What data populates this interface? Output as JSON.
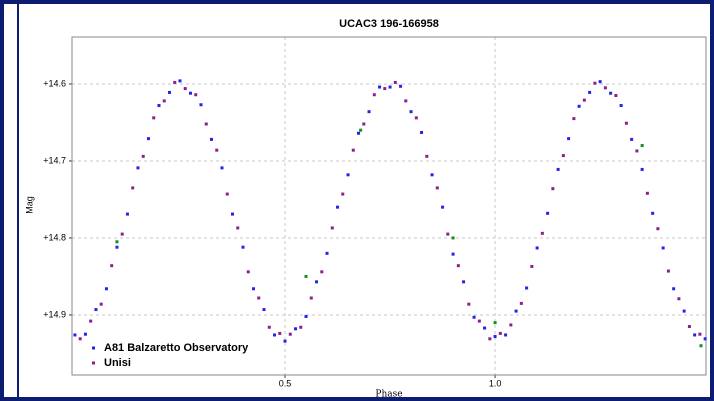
{
  "chart_data": {
    "type": "scatter",
    "title": "UCAC3 196-166958",
    "xlabel": "Phase",
    "ylabel": "Mag",
    "xlim": [
      -0.007,
      1.502
    ],
    "ylim": [
      14.978,
      14.539
    ],
    "xticks": [
      0.5,
      {
        "value": 1.0,
        "label": "1.0"
      }
    ],
    "yticks": [
      {
        "value": 14.6,
        "label": "+14.6"
      },
      {
        "value": 14.7,
        "label": "+14.7"
      },
      {
        "value": 14.8,
        "label": "+14.8"
      },
      {
        "value": 14.9,
        "label": "+14.9"
      }
    ],
    "grid": true,
    "legend": "lower left",
    "series": [
      {
        "name": "A81 Balzaretto Observatory",
        "color": "#2424e6",
        "x": [
          0,
          0.025,
          0.05,
          0.075,
          0.1,
          0.125,
          0.15,
          0.175,
          0.2,
          0.225,
          0.25,
          0.275,
          0.3,
          0.325,
          0.35,
          0.375,
          0.4,
          0.425,
          0.45,
          0.475,
          0.5,
          0.525,
          0.55,
          0.575,
          0.6,
          0.625,
          0.65,
          0.675,
          0.7,
          0.725,
          0.75,
          0.775,
          0.8,
          0.825,
          0.85,
          0.875,
          0.9,
          0.925,
          0.95,
          0.975,
          1.0,
          1.025,
          1.05,
          1.075,
          1.1,
          1.125,
          1.15,
          1.175,
          1.2,
          1.225,
          1.25,
          1.275,
          1.3,
          1.325,
          1.35,
          1.375,
          1.4,
          1.425,
          1.45,
          1.475,
          1.5
        ],
        "values": [
          14.926,
          14.925,
          14.893,
          14.866,
          14.812,
          14.769,
          14.709,
          14.671,
          14.628,
          14.611,
          14.596,
          14.612,
          14.627,
          14.672,
          14.709,
          14.769,
          14.812,
          14.866,
          14.893,
          14.926,
          14.934,
          14.918,
          14.902,
          14.857,
          14.82,
          14.76,
          14.718,
          14.664,
          14.636,
          14.604,
          14.604,
          14.603,
          14.636,
          14.663,
          14.718,
          14.76,
          14.821,
          14.857,
          14.903,
          14.917,
          14.928,
          14.926,
          14.895,
          14.865,
          14.813,
          14.768,
          14.711,
          14.671,
          14.629,
          14.611,
          14.597,
          14.612,
          14.628,
          14.672,
          14.711,
          14.768,
          14.813,
          14.866,
          14.895,
          14.926,
          14.931
        ]
      },
      {
        "name": "Unisi",
        "color": "#8e1e8e",
        "x": [
          0.0125,
          0.0375,
          0.0625,
          0.0875,
          0.1125,
          0.1375,
          0.1625,
          0.1875,
          0.2125,
          0.2375,
          0.2625,
          0.2875,
          0.3125,
          0.3375,
          0.3625,
          0.3875,
          0.4125,
          0.4375,
          0.4625,
          0.4875,
          0.5125,
          0.5375,
          0.5625,
          0.5875,
          0.6125,
          0.6375,
          0.6625,
          0.6875,
          0.7125,
          0.7375,
          0.7625,
          0.7875,
          0.8125,
          0.8375,
          0.8625,
          0.8875,
          0.9125,
          0.9375,
          0.9625,
          0.9875,
          1.0125,
          1.0375,
          1.0625,
          1.0875,
          1.1125,
          1.1375,
          1.1625,
          1.1875,
          1.2125,
          1.2375,
          1.2625,
          1.2875,
          1.3125,
          1.3375,
          1.3625,
          1.3875,
          1.4125,
          1.4375,
          1.4625,
          1.4875
        ],
        "values": [
          14.931,
          14.908,
          14.886,
          14.836,
          14.795,
          14.735,
          14.694,
          14.644,
          14.622,
          14.598,
          14.606,
          14.614,
          14.652,
          14.686,
          14.743,
          14.787,
          14.844,
          14.878,
          14.916,
          14.924,
          14.925,
          14.916,
          14.878,
          14.844,
          14.787,
          14.743,
          14.686,
          14.652,
          14.614,
          14.606,
          14.598,
          14.622,
          14.644,
          14.694,
          14.735,
          14.795,
          14.836,
          14.886,
          14.908,
          14.931,
          14.924,
          14.913,
          14.885,
          14.837,
          14.794,
          14.736,
          14.693,
          14.645,
          14.621,
          14.599,
          14.605,
          14.615,
          14.651,
          14.687,
          14.742,
          14.788,
          14.843,
          14.879,
          14.915,
          14.925
        ]
      },
      {
        "color": "#1a8c1a",
        "x": [
          0.1,
          0.55,
          0.68,
          0.9,
          1.0,
          1.35,
          1.49
        ],
        "values": [
          14.805,
          14.85,
          14.66,
          14.8,
          14.91,
          14.68,
          14.94
        ]
      }
    ]
  }
}
